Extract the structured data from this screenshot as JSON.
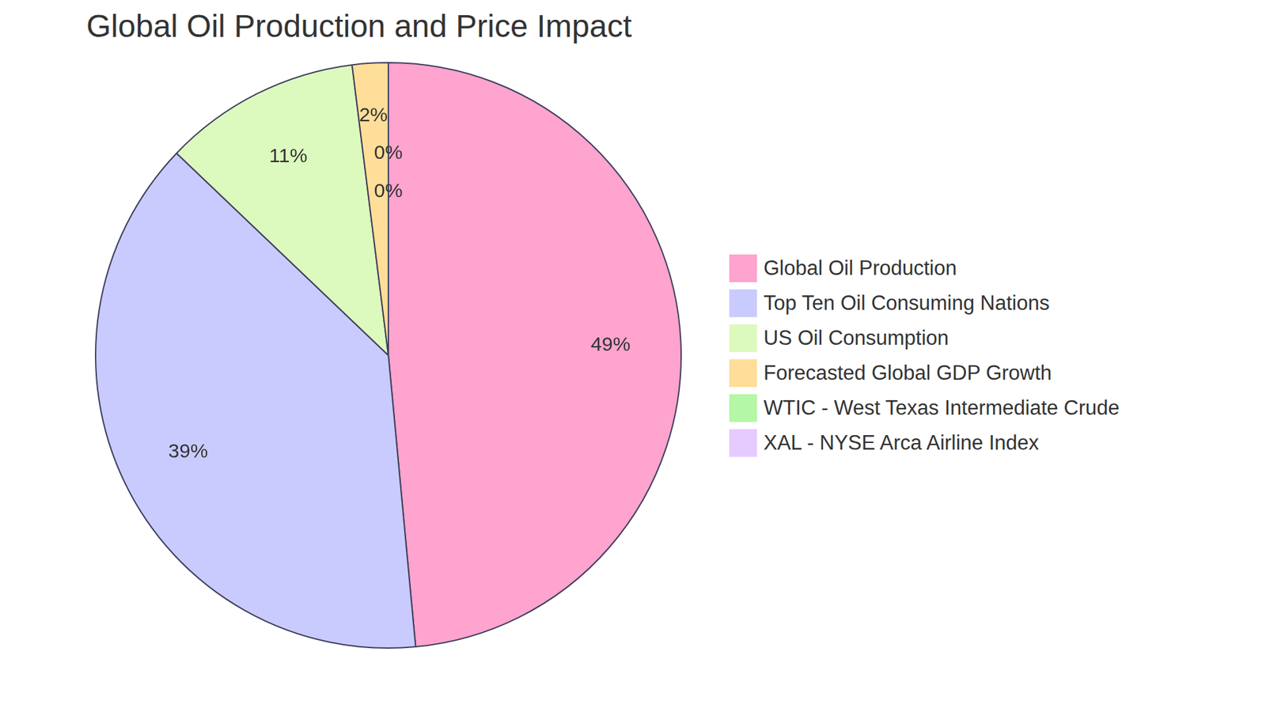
{
  "chart_data": {
    "type": "pie",
    "title": "Global Oil Production and Price Impact",
    "categories": [
      "Global Oil Production",
      "Top Ten Oil Consuming Nations",
      "US Oil Consumption",
      "Forecasted Global GDP Growth",
      "WTIC - West Texas Intermediate Crude",
      "XAL - NYSE Arca Airline Index"
    ],
    "values": [
      49,
      39,
      11,
      2,
      0,
      0
    ],
    "value_labels": [
      "49%",
      "39%",
      "11%",
      "2%",
      "0%",
      "0%"
    ],
    "colors": [
      "#ffa3cf",
      "#c9cbff",
      "#dcfabd",
      "#ffde99",
      "#b4f7a6",
      "#e5cbff"
    ],
    "data_labels": true,
    "legend": "right"
  }
}
